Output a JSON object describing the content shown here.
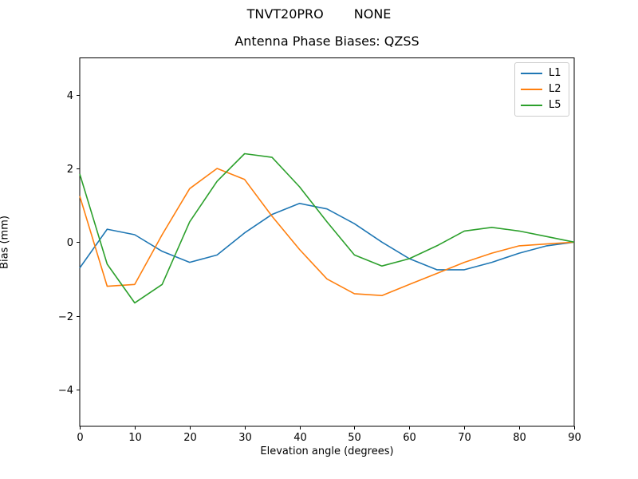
{
  "figure": {
    "suptitle_left": "TNVT20PRO",
    "suptitle_right": "NONE"
  },
  "chart_data": {
    "type": "line",
    "title": "Antenna Phase Biases: QZSS",
    "xlabel": "Elevation angle (degrees)",
    "ylabel": "Bias (mm)",
    "xlim": [
      0,
      90
    ],
    "ylim": [
      -5,
      5
    ],
    "grid": false,
    "legend_position": "top-right",
    "x_ticks": [
      0,
      10,
      20,
      30,
      40,
      50,
      60,
      70,
      80,
      90
    ],
    "y_ticks": [
      -4,
      -2,
      0,
      2,
      4
    ],
    "x": [
      0,
      5,
      10,
      15,
      20,
      25,
      30,
      35,
      40,
      45,
      50,
      55,
      60,
      65,
      70,
      75,
      80,
      85,
      90
    ],
    "series": [
      {
        "name": "L1",
        "color": "#1f77b4",
        "values": [
          -0.7,
          0.35,
          0.2,
          -0.25,
          -0.55,
          -0.35,
          0.25,
          0.75,
          1.05,
          0.9,
          0.5,
          0.0,
          -0.45,
          -0.75,
          -0.75,
          -0.55,
          -0.3,
          -0.1,
          0.0
        ]
      },
      {
        "name": "L2",
        "color": "#ff7f0e",
        "values": [
          1.25,
          -1.2,
          -1.15,
          0.2,
          1.45,
          2.0,
          1.7,
          0.7,
          -0.2,
          -1.0,
          -1.4,
          -1.45,
          -1.15,
          -0.85,
          -0.55,
          -0.3,
          -0.1,
          -0.05,
          0.0
        ]
      },
      {
        "name": "L5",
        "color": "#2ca02c",
        "values": [
          1.85,
          -0.6,
          -1.65,
          -1.15,
          0.55,
          1.65,
          2.4,
          2.3,
          1.5,
          0.55,
          -0.35,
          -0.65,
          -0.45,
          -0.1,
          0.3,
          0.4,
          0.3,
          0.15,
          0.0
        ]
      }
    ]
  }
}
